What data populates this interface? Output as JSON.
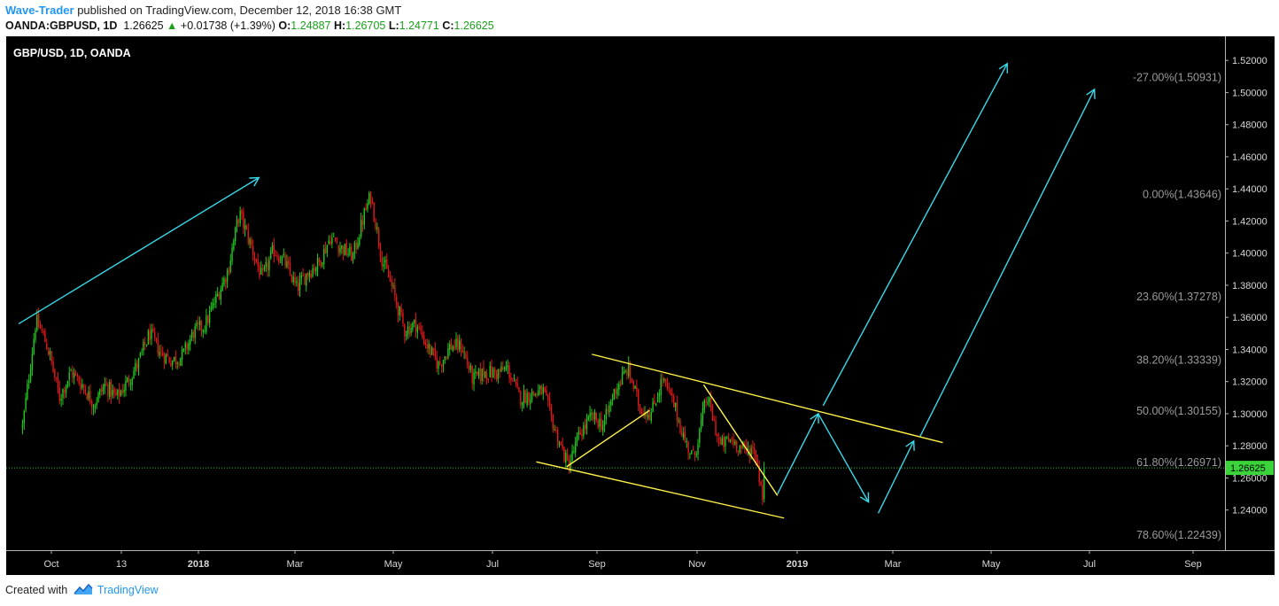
{
  "header": {
    "author": "Wave-Trader",
    "published_text": "published on TradingView.com, December 12, 2018 16:38 GMT",
    "symbol": "OANDA:GBPUSD, 1D",
    "last": "1.26625",
    "change": "+0.01738 (+1.39%)",
    "o_label": "O:",
    "o_value": "1.24887",
    "h_label": "H:",
    "h_value": "1.26705",
    "l_label": "L:",
    "l_value": "1.24771",
    "c_label": "C:",
    "c_value": "1.26625"
  },
  "footer": {
    "created_with": "Created with",
    "brand": "TradingView"
  },
  "colors": {
    "background": "#000000",
    "bull": "#22c81e",
    "bear": "#e01818",
    "trendline": "#fff34a",
    "arrow": "#38d9e8",
    "price_line": "#17d317",
    "axis_text": "#d6d6d6",
    "fib_text": "#9b9b9b"
  },
  "chart_data": {
    "type": "candlestick",
    "title": "GBP/USD, 1D, OANDA",
    "current_price_label": "1.26625",
    "ylim": [
      1.215,
      1.535
    ],
    "y_ticks": [
      "1.52000",
      "1.50000",
      "1.48000",
      "1.46000",
      "1.44000",
      "1.42000",
      "1.40000",
      "1.38000",
      "1.36000",
      "1.34000",
      "1.32000",
      "1.30000",
      "1.28000",
      "1.26000",
      "1.24000"
    ],
    "x_ticks": [
      "Oct",
      "13",
      "2018",
      "Mar",
      "May",
      "Jul",
      "Sep",
      "Nov",
      "2019",
      "Mar",
      "May",
      "Jul",
      "Sep"
    ],
    "fib_levels": [
      {
        "label": "-27.00%(1.50931)",
        "value": 1.50931
      },
      {
        "label": "0.00%(1.43646)",
        "value": 1.43646
      },
      {
        "label": "23.60%(1.37278)",
        "value": 1.37278
      },
      {
        "label": "38.20%(1.33339)",
        "value": 1.33339
      },
      {
        "label": "50.00%(1.30155)",
        "value": 1.30155
      },
      {
        "label": "61.80%(1.26971)",
        "value": 1.26971
      },
      {
        "label": "78.60%(1.22439)",
        "value": 1.22439
      }
    ],
    "price_path": [
      [
        "2017-09-01",
        1.292
      ],
      [
        "2017-09-08",
        1.325
      ],
      [
        "2017-09-15",
        1.358
      ],
      [
        "2017-09-22",
        1.35
      ],
      [
        "2017-09-29",
        1.337
      ],
      [
        "2017-10-06",
        1.31
      ],
      [
        "2017-10-13",
        1.326
      ],
      [
        "2017-10-20",
        1.318
      ],
      [
        "2017-10-27",
        1.306
      ],
      [
        "2017-11-03",
        1.318
      ],
      [
        "2017-11-10",
        1.31
      ],
      [
        "2017-11-17",
        1.32
      ],
      [
        "2017-11-24",
        1.332
      ],
      [
        "2017-12-01",
        1.35
      ],
      [
        "2017-12-08",
        1.338
      ],
      [
        "2017-12-15",
        1.333
      ],
      [
        "2017-12-22",
        1.336
      ],
      [
        "2017-12-29",
        1.351
      ],
      [
        "2018-01-05",
        1.355
      ],
      [
        "2018-01-12",
        1.372
      ],
      [
        "2018-01-19",
        1.389
      ],
      [
        "2018-01-26",
        1.425
      ],
      [
        "2018-02-02",
        1.405
      ],
      [
        "2018-02-09",
        1.384
      ],
      [
        "2018-02-16",
        1.402
      ],
      [
        "2018-02-23",
        1.394
      ],
      [
        "2018-03-02",
        1.378
      ],
      [
        "2018-03-09",
        1.388
      ],
      [
        "2018-03-16",
        1.394
      ],
      [
        "2018-03-23",
        1.41
      ],
      [
        "2018-03-30",
        1.403
      ],
      [
        "2018-04-06",
        1.398
      ],
      [
        "2018-04-13",
        1.424
      ],
      [
        "2018-04-17",
        1.436
      ],
      [
        "2018-04-24",
        1.397
      ],
      [
        "2018-05-01",
        1.376
      ],
      [
        "2018-05-08",
        1.352
      ],
      [
        "2018-05-15",
        1.356
      ],
      [
        "2018-05-22",
        1.342
      ],
      [
        "2018-05-29",
        1.33
      ],
      [
        "2018-06-05",
        1.342
      ],
      [
        "2018-06-12",
        1.342
      ],
      [
        "2018-06-19",
        1.321
      ],
      [
        "2018-06-26",
        1.326
      ],
      [
        "2018-07-03",
        1.325
      ],
      [
        "2018-07-10",
        1.328
      ],
      [
        "2018-07-17",
        1.31
      ],
      [
        "2018-07-24",
        1.312
      ],
      [
        "2018-07-31",
        1.314
      ],
      [
        "2018-08-07",
        1.29
      ],
      [
        "2018-08-15",
        1.267
      ],
      [
        "2018-08-22",
        1.288
      ],
      [
        "2018-08-29",
        1.298
      ],
      [
        "2018-09-05",
        1.293
      ],
      [
        "2018-09-12",
        1.315
      ],
      [
        "2018-09-20",
        1.328
      ],
      [
        "2018-09-27",
        1.304
      ],
      [
        "2018-10-04",
        1.3
      ],
      [
        "2018-10-11",
        1.322
      ],
      [
        "2018-10-18",
        1.305
      ],
      [
        "2018-10-25",
        1.282
      ],
      [
        "2018-10-30",
        1.272
      ],
      [
        "2018-11-07",
        1.311
      ],
      [
        "2018-11-15",
        1.28
      ],
      [
        "2018-11-22",
        1.284
      ],
      [
        "2018-11-30",
        1.277
      ],
      [
        "2018-12-06",
        1.278
      ],
      [
        "2018-12-11",
        1.249
      ],
      [
        "2018-12-12",
        1.266
      ]
    ],
    "trendlines": [
      {
        "from": [
          "2018-07-27",
          1.27
        ],
        "to": [
          "2018-12-24",
          1.235
        ]
      },
      {
        "from": [
          "2018-08-14",
          1.267
        ],
        "to": [
          "2018-10-03",
          1.302
        ]
      },
      {
        "from": [
          "2018-08-29",
          1.337
        ],
        "to": [
          "2019-04-01",
          1.282
        ]
      },
      {
        "from": [
          "2018-11-05",
          1.318
        ],
        "to": [
          "2018-12-20",
          1.249
        ]
      }
    ],
    "arrows": [
      {
        "from": [
          "2017-08-28",
          1.356
        ],
        "to": [
          "2018-02-07",
          1.447
        ]
      },
      {
        "from": [
          "2018-12-20",
          1.25
        ],
        "to": [
          "2019-01-14",
          1.3
        ]
      },
      {
        "from": [
          "2019-01-14",
          1.3
        ],
        "to": [
          "2019-02-14",
          1.245
        ]
      },
      {
        "from": [
          "2019-02-20",
          1.238
        ],
        "to": [
          "2019-03-14",
          1.283
        ]
      },
      {
        "from": [
          "2019-01-17",
          1.305
        ],
        "to": [
          "2019-05-11",
          1.518
        ]
      },
      {
        "from": [
          "2019-03-18",
          1.286
        ],
        "to": [
          "2019-07-04",
          1.502
        ]
      }
    ]
  }
}
